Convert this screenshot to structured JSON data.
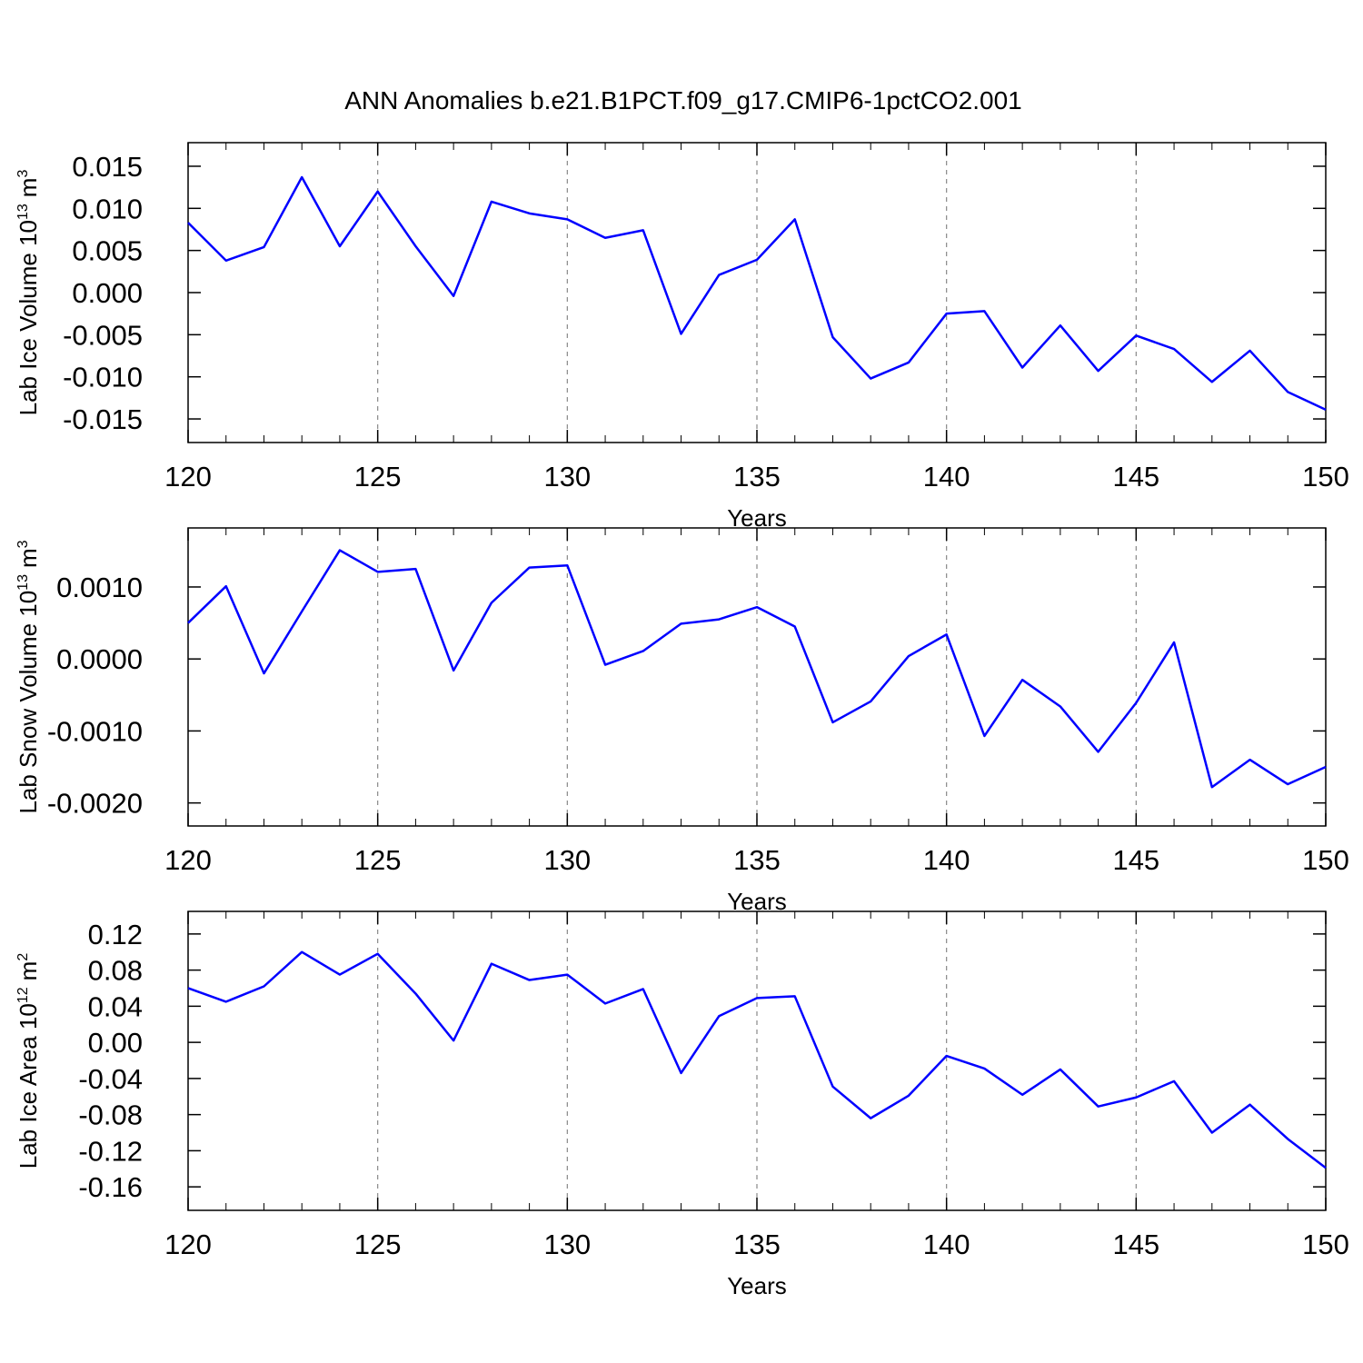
{
  "chart_data": [
    {
      "type": "line",
      "title": "ANN Anomalies b.e21.B1PCT.f09_g17.CMIP6-1pctCO2.001",
      "xlabel": "Years",
      "ylabel": {
        "text": "Lab Ice Volume 10",
        "exp": "13",
        "unit": "m",
        "unit_exp": "3"
      },
      "x": [
        120,
        121,
        122,
        123,
        124,
        125,
        126,
        127,
        128,
        129,
        130,
        131,
        132,
        133,
        134,
        135,
        136,
        137,
        138,
        139,
        140,
        141,
        142,
        143,
        144,
        145,
        146,
        147,
        148,
        149,
        150
      ],
      "series": [
        {
          "color": "#0000ff",
          "values": [
            0.0083,
            0.0038,
            0.0054,
            0.0137,
            0.0055,
            0.012,
            0.0055,
            -0.0004,
            0.0108,
            0.0094,
            0.0087,
            0.0065,
            0.0074,
            -0.0049,
            0.0021,
            0.0039,
            0.0087,
            -0.0053,
            -0.0102,
            -0.0083,
            -0.0025,
            -0.0022,
            -0.0089,
            -0.0039,
            -0.0093,
            -0.0051,
            -0.0067,
            -0.0106,
            -0.0069,
            -0.0118,
            -0.0139
          ]
        }
      ],
      "xlim": [
        120,
        150
      ],
      "xticks": [
        120,
        125,
        130,
        135,
        140,
        145,
        150
      ],
      "ylim": [
        -0.0178,
        0.0178
      ],
      "yticks": [
        0.015,
        {
          "value": 0.01,
          "label": "0.010"
        },
        0.005,
        {
          "value": 0,
          "label": "0.000"
        },
        -0.005,
        {
          "value": -0.01,
          "label": "-0.010"
        },
        -0.015
      ],
      "grid": true
    },
    {
      "type": "line",
      "xlabel": "Years",
      "ylabel": {
        "text": "Lab Snow Volume 10",
        "exp": "13",
        "unit": "m",
        "unit_exp": "3"
      },
      "x": [
        120,
        121,
        122,
        123,
        124,
        125,
        126,
        127,
        128,
        129,
        130,
        131,
        132,
        133,
        134,
        135,
        136,
        137,
        138,
        139,
        140,
        141,
        142,
        143,
        144,
        145,
        146,
        147,
        148,
        149,
        150
      ],
      "series": [
        {
          "color": "#0000ff",
          "values": [
            0.0005,
            0.00101,
            -0.0002,
            0.00066,
            0.00151,
            0.00121,
            0.00125,
            -0.00016,
            0.00078,
            0.00127,
            0.0013,
            -8e-05,
            0.00011,
            0.00049,
            0.00055,
            0.00072,
            0.00045,
            -0.00088,
            -0.00059,
            4e-05,
            0.00034,
            -0.00107,
            -0.00029,
            -0.00066,
            -0.00129,
            -0.00061,
            0.00023,
            -0.00178,
            -0.0014,
            -0.00174,
            -0.0015
          ]
        }
      ],
      "xlim": [
        120,
        150
      ],
      "xticks": [
        120,
        125,
        130,
        135,
        140,
        145,
        150
      ],
      "ylim": [
        -0.00232,
        0.00182
      ],
      "yticks": [
        {
          "value": 0.001,
          "label": "0.0010"
        },
        {
          "value": 0,
          "label": "0.0000"
        },
        {
          "value": -0.001,
          "label": "-0.0010"
        },
        {
          "value": -0.002,
          "label": "-0.0020"
        }
      ],
      "grid": true
    },
    {
      "type": "line",
      "xlabel": "Years",
      "ylabel": {
        "text": "Lab Ice Area 10",
        "exp": "12",
        "unit": "m",
        "unit_exp": "2"
      },
      "x": [
        120,
        121,
        122,
        123,
        124,
        125,
        126,
        127,
        128,
        129,
        130,
        131,
        132,
        133,
        134,
        135,
        136,
        137,
        138,
        139,
        140,
        141,
        142,
        143,
        144,
        145,
        146,
        147,
        148,
        149,
        150
      ],
      "series": [
        {
          "color": "#0000ff",
          "values": [
            0.06,
            0.045,
            0.062,
            0.1,
            0.075,
            0.098,
            0.054,
            0.002,
            0.087,
            0.069,
            0.075,
            0.043,
            0.059,
            -0.034,
            0.029,
            0.049,
            0.051,
            -0.049,
            -0.084,
            -0.059,
            -0.015,
            -0.029,
            -0.058,
            -0.03,
            -0.071,
            -0.061,
            -0.043,
            -0.1,
            -0.069,
            -0.107,
            -0.139
          ]
        }
      ],
      "xlim": [
        120,
        150
      ],
      "xticks": [
        120,
        125,
        130,
        135,
        140,
        145,
        150
      ],
      "ylim": [
        -0.186,
        0.145
      ],
      "yticks": [
        0.12,
        0.08,
        0.04,
        {
          "value": 0,
          "label": "0.00"
        },
        -0.04,
        -0.08,
        -0.12,
        -0.16
      ],
      "grid": true
    }
  ]
}
